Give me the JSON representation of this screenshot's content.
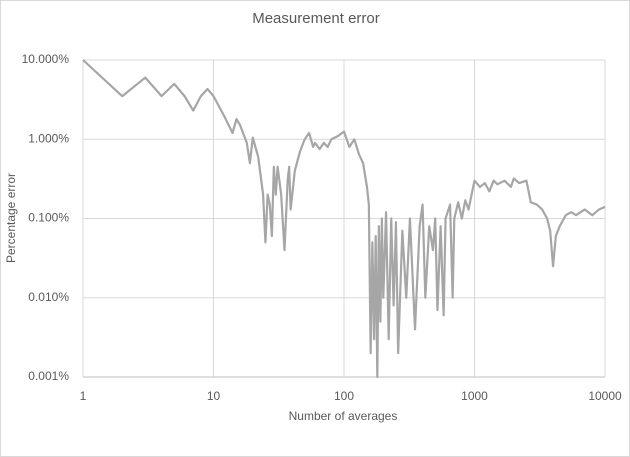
{
  "chart_data": {
    "type": "line",
    "title": "Measurement error",
    "xlabel": "Number of averages",
    "ylabel": "Percentage error",
    "xlog": true,
    "ylog": true,
    "grid": true,
    "xlim": [
      1,
      10000
    ],
    "ylim": [
      0.001,
      10
    ],
    "xticks": [
      1,
      10,
      100,
      1000,
      10000
    ],
    "yticks": [
      {
        "value": 10,
        "label": "10.000%"
      },
      {
        "value": 1,
        "label": "1.000%"
      },
      {
        "value": 0.1,
        "label": "0.100%"
      },
      {
        "value": 0.01,
        "label": "0.010%"
      },
      {
        "value": 0.001,
        "label": "0.001%"
      }
    ],
    "x": [
      1,
      2,
      3,
      4,
      5,
      6,
      7,
      8,
      9,
      10,
      12,
      14,
      15,
      16,
      18,
      19,
      20,
      22,
      24,
      25,
      26,
      27,
      28,
      29,
      30,
      31,
      33,
      35,
      37,
      38,
      39,
      42,
      46,
      50,
      54,
      58,
      60,
      65,
      70,
      75,
      80,
      90,
      100,
      110,
      120,
      130,
      140,
      150,
      155,
      160,
      165,
      170,
      175,
      180,
      185,
      190,
      195,
      200,
      210,
      220,
      230,
      240,
      250,
      260,
      280,
      300,
      320,
      350,
      380,
      400,
      420,
      450,
      480,
      500,
      520,
      550,
      580,
      600,
      650,
      680,
      700,
      750,
      800,
      850,
      900,
      950,
      1000,
      1100,
      1200,
      1300,
      1400,
      1500,
      1700,
      1900,
      2000,
      2200,
      2500,
      2700,
      3000,
      3300,
      3600,
      3800,
      4000,
      4200,
      4500,
      5000,
      5500,
      6000,
      7000,
      8000,
      9000,
      10000
    ],
    "series": [
      {
        "name": "Percentage error",
        "color": "#a6a6a6",
        "values": [
          10,
          3.5,
          6,
          3.5,
          5,
          3.5,
          2.3,
          3.5,
          4.3,
          3.5,
          2,
          1.2,
          1.8,
          1.5,
          0.9,
          0.5,
          1.05,
          0.6,
          0.2,
          0.05,
          0.2,
          0.15,
          0.06,
          0.45,
          0.2,
          0.45,
          0.2,
          0.04,
          0.3,
          0.45,
          0.13,
          0.4,
          0.7,
          1.0,
          1.2,
          0.8,
          0.9,
          0.75,
          0.9,
          0.8,
          1.0,
          1.1,
          1.25,
          0.8,
          1.0,
          0.65,
          0.5,
          0.25,
          0.15,
          0.002,
          0.05,
          0.003,
          0.06,
          0.001,
          0.08,
          0.005,
          0.1,
          0.01,
          0.12,
          0.003,
          0.1,
          0.008,
          0.09,
          0.002,
          0.07,
          0.01,
          0.1,
          0.004,
          0.08,
          0.15,
          0.01,
          0.08,
          0.04,
          0.1,
          0.007,
          0.08,
          0.006,
          0.1,
          0.15,
          0.01,
          0.1,
          0.16,
          0.1,
          0.17,
          0.13,
          0.2,
          0.3,
          0.25,
          0.28,
          0.22,
          0.3,
          0.27,
          0.3,
          0.25,
          0.32,
          0.28,
          0.3,
          0.16,
          0.15,
          0.13,
          0.1,
          0.07,
          0.025,
          0.06,
          0.08,
          0.11,
          0.12,
          0.11,
          0.13,
          0.11,
          0.13,
          0.14
        ]
      }
    ]
  }
}
